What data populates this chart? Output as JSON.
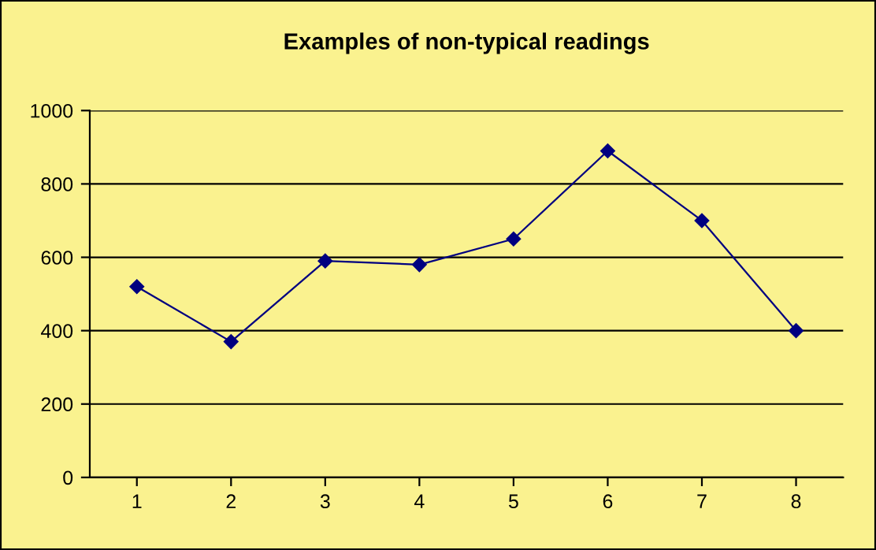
{
  "chart_data": {
    "type": "line",
    "title": "Examples of non-typical readings",
    "categories": [
      "1",
      "2",
      "3",
      "4",
      "5",
      "6",
      "7",
      "8"
    ],
    "series": [
      {
        "color": "#000080",
        "values": [
          520,
          370,
          590,
          580,
          650,
          890,
          700,
          400
        ]
      }
    ],
    "ylim": [
      0,
      1000
    ],
    "yticks": [
      0,
      200,
      400,
      600,
      800,
      1000
    ],
    "grid": "y",
    "legend": false,
    "marker": "diamond",
    "line_style": "solid"
  }
}
